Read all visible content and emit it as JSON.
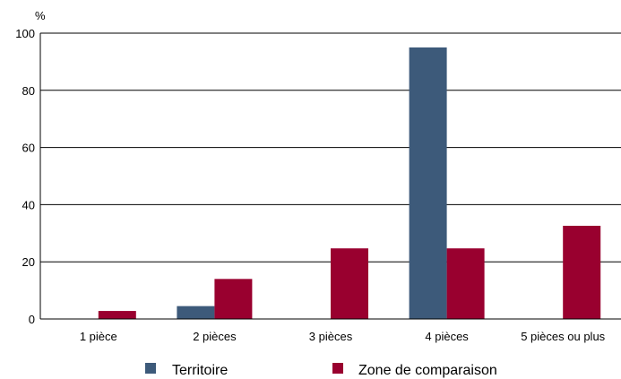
{
  "chart_data": {
    "type": "bar",
    "title": "",
    "xlabel": "",
    "ylabel": "%",
    "ylim": [
      0,
      100
    ],
    "yticks": [
      0,
      20,
      40,
      60,
      80,
      100
    ],
    "grid": true,
    "legend_position": "bottom",
    "categories": [
      "1 pièce",
      "2 pièces",
      "3 pièces",
      "4 pièces",
      "5 pièces ou plus"
    ],
    "series": [
      {
        "name": "Territoire",
        "color": "#3d5a7a",
        "values": [
          0,
          4.5,
          0,
          95,
          0
        ]
      },
      {
        "name": "Zone de comparaison",
        "color": "#99002f",
        "values": [
          2.8,
          14,
          24.7,
          24.7,
          32.6
        ]
      }
    ]
  }
}
